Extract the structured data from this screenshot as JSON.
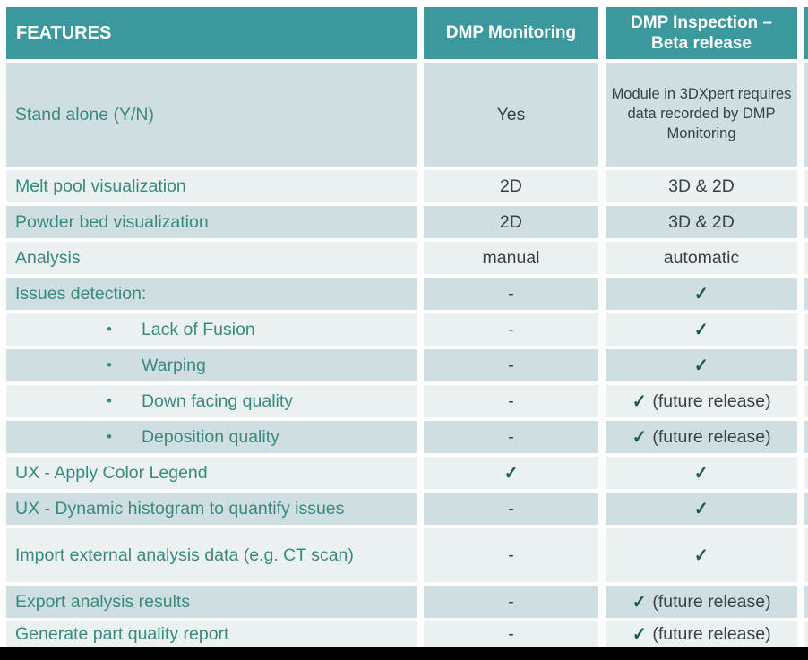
{
  "table": {
    "header": {
      "features_label": "FEATURES",
      "monitoring_label": "DMP Monitoring",
      "inspection_label_line1": "DMP Inspection –",
      "inspection_label_line2": "Beta release"
    },
    "rows": [
      {
        "feature": "Stand alone (Y/N)",
        "monitoring": "Yes",
        "inspection": "Module in 3DXpert requires data recorded by DMP Monitoring",
        "size": "xl",
        "inspection_small": true
      },
      {
        "feature": "Melt pool visualization",
        "monitoring": "2D",
        "inspection": "3D & 2D"
      },
      {
        "feature": "Powder bed visualization",
        "monitoring": "2D",
        "inspection": "3D & 2D"
      },
      {
        "feature": "Analysis",
        "monitoring": "manual",
        "inspection": "automatic"
      },
      {
        "feature": "Issues detection:",
        "monitoring": "-",
        "inspection": "✓"
      },
      {
        "feature": "Lack of Fusion",
        "bullet": true,
        "monitoring": "-",
        "inspection": "✓"
      },
      {
        "feature": "Warping",
        "bullet": true,
        "monitoring": "-",
        "inspection": "✓"
      },
      {
        "feature": "Down facing quality",
        "bullet": true,
        "monitoring": "-",
        "inspection": "✓ (future release)"
      },
      {
        "feature": "Deposition quality",
        "bullet": true,
        "monitoring": "-",
        "inspection": "✓ (future release)"
      },
      {
        "feature": "UX - Apply Color Legend",
        "monitoring": "✓",
        "inspection": "✓"
      },
      {
        "feature": "UX - Dynamic histogram to quantify issues",
        "monitoring": "-",
        "inspection": "✓"
      },
      {
        "feature": "Import external analysis data (e.g. CT scan)",
        "monitoring": "-",
        "inspection": "✓",
        "size": "lg"
      },
      {
        "feature": "Export analysis results",
        "monitoring": "-",
        "inspection": "✓ (future release)"
      },
      {
        "feature": "Generate part quality report",
        "monitoring": "-",
        "inspection": "✓ (future release)",
        "size": "last"
      }
    ],
    "bullet_glyph": "•",
    "colors": {
      "header_bg": "#3b999e",
      "row_dark": "#cfdfe1",
      "row_light": "#eaf1f0",
      "feature_text": "#3a897f",
      "value_text": "#3a4145",
      "check": "#1e5c4b",
      "footer_bar": "#000000"
    }
  }
}
